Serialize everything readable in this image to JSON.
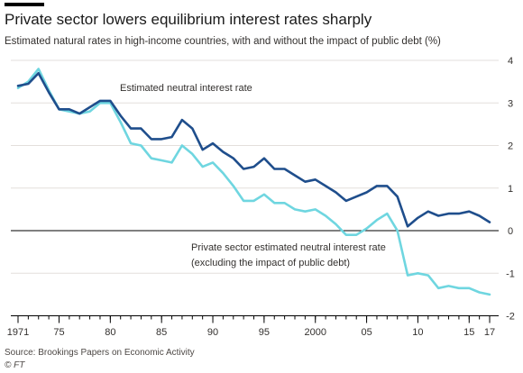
{
  "header": {
    "title": "Private sector lowers equilibrium interest rates sharply",
    "subtitle": "Estimated natural rates in high-income countries, with and without the impact of public debt (%)"
  },
  "footer": {
    "source": "Source: Brookings Papers on Economic Activity",
    "credit": "© FT"
  },
  "colors": {
    "series1": "#1f4e8c",
    "series2": "#6fd6e0",
    "grid": "#e3dfdc",
    "zero_line": "#000000",
    "text": "#33302e"
  },
  "chart_data": {
    "type": "line",
    "title": "Private sector lowers equilibrium interest rates sharply",
    "subtitle": "Estimated natural rates in high-income countries, with and without the impact of public debt (%)",
    "xlabel": "",
    "ylabel": "",
    "xlim": [
      1971,
      2018
    ],
    "ylim": [
      -2,
      4
    ],
    "y_ticks": [
      4,
      3,
      2,
      1,
      0,
      -1,
      -2
    ],
    "x_ticks": [
      {
        "year": 1971,
        "label": "1971"
      },
      {
        "year": 1975,
        "label": "75"
      },
      {
        "year": 1980,
        "label": "80"
      },
      {
        "year": 1985,
        "label": "85"
      },
      {
        "year": 1990,
        "label": "90"
      },
      {
        "year": 1995,
        "label": "95"
      },
      {
        "year": 2000,
        "label": "2000"
      },
      {
        "year": 2005,
        "label": "05"
      },
      {
        "year": 2010,
        "label": "10"
      },
      {
        "year": 2015,
        "label": "15"
      },
      {
        "year": 2017,
        "label": "17"
      }
    ],
    "grid": true,
    "y_axis_side": "right",
    "x": [
      1971,
      1972,
      1973,
      1974,
      1975,
      1976,
      1977,
      1978,
      1979,
      1980,
      1981,
      1982,
      1983,
      1984,
      1985,
      1986,
      1987,
      1988,
      1989,
      1990,
      1991,
      1992,
      1993,
      1994,
      1995,
      1996,
      1997,
      1998,
      1999,
      2000,
      2001,
      2002,
      2003,
      2004,
      2005,
      2006,
      2007,
      2008,
      2009,
      2010,
      2011,
      2012,
      2013,
      2014,
      2015,
      2016,
      2017
    ],
    "series": [
      {
        "name": "Estimated neutral interest rate",
        "color": "#1f4e8c",
        "values": [
          3.4,
          3.45,
          3.7,
          3.25,
          2.85,
          2.85,
          2.75,
          2.9,
          3.05,
          3.05,
          2.7,
          2.4,
          2.4,
          2.15,
          2.15,
          2.2,
          2.6,
          2.4,
          1.9,
          2.05,
          1.85,
          1.7,
          1.45,
          1.5,
          1.7,
          1.45,
          1.45,
          1.3,
          1.15,
          1.2,
          1.05,
          0.9,
          0.7,
          0.8,
          0.9,
          1.05,
          1.05,
          0.8,
          0.1,
          0.3,
          0.45,
          0.35,
          0.4,
          0.4,
          0.45,
          0.35,
          0.2
        ]
      },
      {
        "name": "Private sector estimated neutral interest rate",
        "color": "#6fd6e0",
        "values": [
          3.35,
          3.5,
          3.8,
          3.3,
          2.85,
          2.8,
          2.75,
          2.8,
          3.0,
          3.0,
          2.55,
          2.05,
          2.0,
          1.7,
          1.65,
          1.6,
          2.0,
          1.8,
          1.5,
          1.6,
          1.35,
          1.05,
          0.7,
          0.7,
          0.85,
          0.65,
          0.65,
          0.5,
          0.45,
          0.5,
          0.35,
          0.15,
          -0.1,
          -0.1,
          0.05,
          0.25,
          0.4,
          0.0,
          -1.05,
          -1.0,
          -1.05,
          -1.35,
          -1.3,
          -1.35,
          -1.35,
          -1.45,
          -1.5
        ]
      }
    ],
    "annotations": [
      {
        "text": "Estimated neutral interest rate",
        "series": 0
      },
      {
        "text": "Private sector estimated neutral interest rate",
        "series": 1
      },
      {
        "text": "(excluding the impact of public debt)",
        "series": 1
      }
    ]
  }
}
